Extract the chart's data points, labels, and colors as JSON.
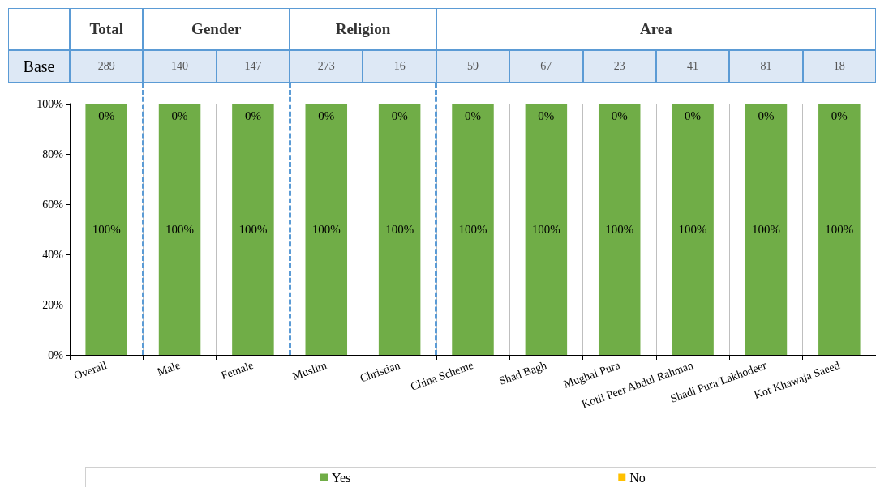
{
  "chart_data": {
    "type": "bar",
    "stacked": true,
    "categories": [
      "Overall",
      "Male",
      "Female",
      "Muslim",
      "Christian",
      "China Scheme",
      "Shad Bagh",
      "Mughal Pura",
      "Kotli Peer Abdul Rahman",
      "Shadi Pura/Lakhodeer",
      "Kot Khawaja Saeed"
    ],
    "series": [
      {
        "name": "Yes",
        "color": "#70ad47",
        "values": [
          100,
          100,
          100,
          100,
          100,
          100,
          100,
          100,
          100,
          100,
          100
        ],
        "value_labels": [
          "100%",
          "100%",
          "100%",
          "100%",
          "100%",
          "100%",
          "100%",
          "100%",
          "100%",
          "100%",
          "100%"
        ]
      },
      {
        "name": "No",
        "color": "#ffc000",
        "values": [
          0,
          0,
          0,
          0,
          0,
          0,
          0,
          0,
          0,
          0,
          0
        ],
        "value_labels": [
          "0%",
          "0%",
          "0%",
          "0%",
          "0%",
          "0%",
          "0%",
          "0%",
          "0%",
          "0%",
          "0%"
        ]
      }
    ],
    "ylim": [
      0,
      100
    ],
    "yticks": [
      {
        "value": 0,
        "label": "0%"
      },
      {
        "value": 20,
        "label": "20%"
      },
      {
        "value": 40,
        "label": "40%"
      },
      {
        "value": 60,
        "label": "60%"
      },
      {
        "value": 80,
        "label": "80%"
      },
      {
        "value": 100,
        "label": "100%"
      }
    ],
    "grid": "x",
    "legend": "bottom",
    "annotations": [
      "Total",
      "Gender",
      "Religion",
      "Area",
      "Base",
      "289",
      "140",
      "147",
      "273",
      "16",
      "59",
      "67",
      "23",
      "41",
      "81",
      "18"
    ]
  }
}
